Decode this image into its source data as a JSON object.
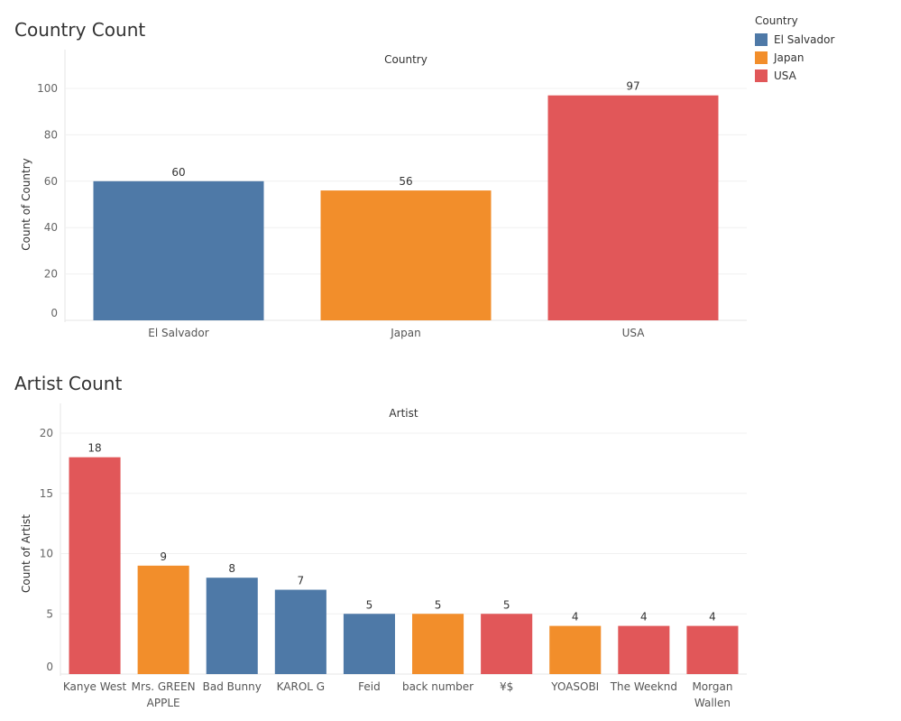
{
  "legend": {
    "title": "Country",
    "items": [
      {
        "label": "El Salvador",
        "color": "#4e79a7"
      },
      {
        "label": "Japan",
        "color": "#f28e2b"
      },
      {
        "label": "USA",
        "color": "#e15759"
      }
    ]
  },
  "chart_data": [
    {
      "type": "bar",
      "title": "Country Count",
      "header": "Country",
      "ylabel": "Count of Country",
      "xlabel": "",
      "ylim": [
        0,
        100
      ],
      "yticks": [
        0,
        20,
        40,
        60,
        80,
        100
      ],
      "grid": true,
      "categories": [
        "El Salvador",
        "Japan",
        "USA"
      ],
      "values": [
        60,
        56,
        97
      ],
      "colors": [
        "#4e79a7",
        "#f28e2b",
        "#e15759"
      ]
    },
    {
      "type": "bar",
      "title": "Artist Count",
      "header": "Artist",
      "ylabel": "Count of Artist",
      "xlabel": "",
      "ylim": [
        0,
        20
      ],
      "yticks": [
        0,
        5,
        10,
        15,
        20
      ],
      "grid": true,
      "categories": [
        "Kanye West",
        "Mrs. GREEN APPLE",
        "Bad Bunny",
        "KAROL G",
        "Feid",
        "back number",
        "¥$",
        "YOASOBI",
        "The Weeknd",
        "Morgan Wallen"
      ],
      "category_lines": [
        [
          "Kanye West"
        ],
        [
          "Mrs. GREEN",
          "APPLE"
        ],
        [
          "Bad Bunny"
        ],
        [
          "KAROL G"
        ],
        [
          "Feid"
        ],
        [
          "back number"
        ],
        [
          "¥$"
        ],
        [
          "YOASOBI"
        ],
        [
          "The Weeknd"
        ],
        [
          "Morgan",
          "Wallen"
        ]
      ],
      "values": [
        18,
        9,
        8,
        7,
        5,
        5,
        5,
        4,
        4,
        4
      ],
      "colors": [
        "#e15759",
        "#f28e2b",
        "#4e79a7",
        "#4e79a7",
        "#4e79a7",
        "#f28e2b",
        "#e15759",
        "#f28e2b",
        "#e15759",
        "#e15759"
      ]
    }
  ]
}
